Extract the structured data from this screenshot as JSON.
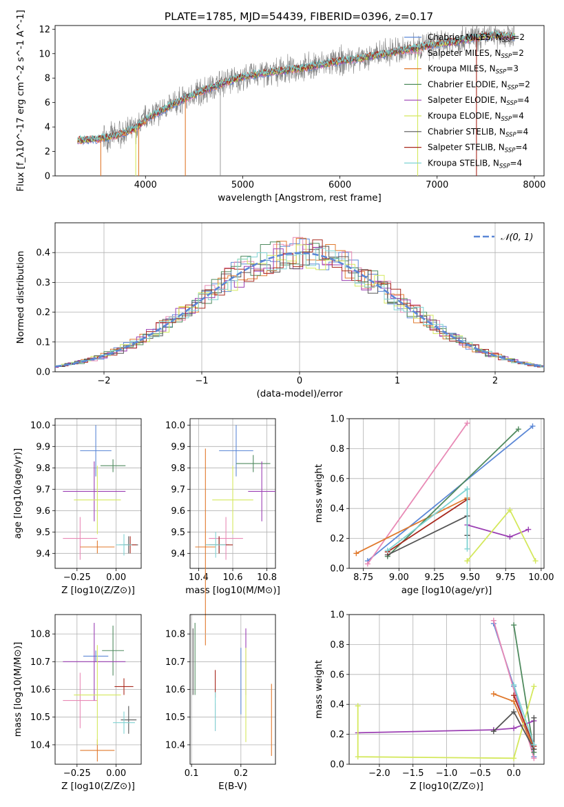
{
  "figure_title": "PLATE=1785, MJD=54439, FIBERID=0396, z=0.17",
  "colors": {
    "chabrier_miles": "#5b87d6",
    "salpeter_miles": "#e889b5",
    "kroupa_miles": "#e0782b",
    "chabrier_elodie": "#4f8a5e",
    "salpeter_elodie": "#9b3fb3",
    "kroupa_elodie": "#d4e85c",
    "chabrier_stelib": "#555555",
    "salpeter_stelib": "#a8281d",
    "kroupa_stelib": "#7fd3d3",
    "data": "#808080",
    "normal": "#5b87d6"
  },
  "chart_data": [
    {
      "id": "spectrum",
      "type": "line",
      "title": "PLATE=1785, MJD=54439, FIBERID=0396, z=0.17",
      "xlabel": "wavelength [Angstrom, rest frame]",
      "ylabel": "Flux [f_λ10^-17 erg cm^-2 s^-1 A^-1]",
      "xlim": [
        3070,
        8100
      ],
      "ylim": [
        0,
        12.3
      ],
      "xticks": [
        "4000",
        "5000",
        "6000",
        "7000",
        "8000"
      ],
      "yticks": [
        "0",
        "2",
        "4",
        "6",
        "8",
        "10",
        "12"
      ],
      "legend_position": "right",
      "legend": [
        {
          "key": "chabrier_miles",
          "label": "Chabrier MILES, N",
          "sub": "SSP",
          "val": "=2"
        },
        {
          "key": "salpeter_miles",
          "label": "Salpeter MILES, N",
          "sub": "SSP",
          "val": "=2"
        },
        {
          "key": "kroupa_miles",
          "label": "Kroupa MILES, N",
          "sub": "SSP",
          "val": "=3"
        },
        {
          "key": "chabrier_elodie",
          "label": "Chabrier ELODIE, N",
          "sub": "SSP",
          "val": "=2"
        },
        {
          "key": "salpeter_elodie",
          "label": "Salpeter ELODIE, N",
          "sub": "SSP",
          "val": "=4"
        },
        {
          "key": "kroupa_elodie",
          "label": "Kroupa ELODIE, N",
          "sub": "SSP",
          "val": "=4"
        },
        {
          "key": "chabrier_stelib",
          "label": "Chabrier STELIB, N",
          "sub": "SSP",
          "val": "=4"
        },
        {
          "key": "salpeter_stelib",
          "label": "Salpeter STELIB, N",
          "sub": "SSP",
          "val": "=4"
        },
        {
          "key": "kroupa_stelib",
          "label": "Kroupa STELIB, N",
          "sub": "SSP",
          "val": "=4"
        }
      ],
      "continuum": {
        "x": [
          3300,
          3500,
          3700,
          3900,
          4000,
          4200,
          4400,
          4600,
          4800,
          5000,
          5200,
          5400,
          5600,
          5800,
          6000,
          6200,
          6400,
          6600,
          6800,
          7000,
          7200,
          7400,
          7600,
          7800
        ],
        "y": [
          2.9,
          3.0,
          3.3,
          3.9,
          4.6,
          5.5,
          6.3,
          7.0,
          7.6,
          8.1,
          8.4,
          8.6,
          8.8,
          9.1,
          9.4,
          9.6,
          9.9,
          10.2,
          10.5,
          10.8,
          11.0,
          11.3,
          11.5,
          11.4
        ]
      }
    },
    {
      "id": "residuals",
      "type": "bar",
      "xlabel": "(data-model)/error",
      "ylabel": "Normed distribution",
      "xlim": [
        -2.5,
        2.5
      ],
      "ylim": [
        0,
        0.5
      ],
      "xticks": [
        "−2",
        "−1",
        "0",
        "1",
        "2"
      ],
      "yticks": [
        "0.0",
        "0.1",
        "0.2",
        "0.3",
        "0.4"
      ],
      "bin_width": 0.1,
      "legend_label": "𝒩(0, 1)",
      "legend_position": "top-right",
      "grid": true
    },
    {
      "id": "age_vs_Z",
      "type": "scatter",
      "xlabel": "Z [log10(Z/Z⊙)]",
      "ylabel": "age [log10(age/yr)]",
      "xlim": [
        -0.39,
        0.16
      ],
      "ylim": [
        9.33,
        10.03
      ],
      "xticks": [
        "−0.25",
        "0.00"
      ],
      "yticks": [
        "9.4",
        "9.5",
        "9.6",
        "9.7",
        "9.8",
        "9.9",
        "10.0"
      ],
      "grid": true,
      "points": [
        {
          "key": "chabrier_miles",
          "x": -0.13,
          "xerr": 0.1,
          "y": 9.88,
          "yerr": 0.12
        },
        {
          "key": "salpeter_miles",
          "x": -0.23,
          "xerr": 0.11,
          "y": 9.47,
          "yerr": 0.1
        },
        {
          "key": "kroupa_miles",
          "x": -0.12,
          "xerr": 0.11,
          "y": 9.43,
          "yerr": 0.03
        },
        {
          "key": "chabrier_elodie",
          "x": -0.02,
          "xerr": 0.08,
          "y": 9.81,
          "yerr": 0.03
        },
        {
          "key": "salpeter_elodie",
          "x": -0.14,
          "xerr": 0.2,
          "y": 9.69,
          "yerr": 0.14
        },
        {
          "key": "kroupa_elodie",
          "x": -0.12,
          "xerr": 0.15,
          "y": 9.65,
          "yerr": 0.16
        },
        {
          "key": "chabrier_stelib",
          "x": 0.08,
          "xerr": 0.06,
          "y": 9.44,
          "yerr": 0.04
        },
        {
          "key": "salpeter_stelib",
          "x": 0.09,
          "xerr": 0.04,
          "y": 9.44,
          "yerr": 0.04
        },
        {
          "key": "kroupa_stelib",
          "x": 0.05,
          "xerr": 0.05,
          "y": 9.44,
          "yerr": 0.05
        }
      ]
    },
    {
      "id": "age_vs_mass",
      "type": "scatter",
      "xlabel": "mass [log10(M/M⊙)]",
      "ylabel": "",
      "xlim": [
        10.35,
        10.85
      ],
      "ylim": [
        9.33,
        10.03
      ],
      "xticks": [
        "10.4",
        "10.6",
        "10.8"
      ],
      "yticks": [
        "9.4",
        "9.5",
        "9.6",
        "9.7",
        "9.8",
        "9.9",
        "10.0"
      ],
      "grid": true,
      "points": [
        {
          "key": "chabrier_miles",
          "x": 10.62,
          "xerr": 0.1,
          "y": 9.88,
          "yerr": 0.12
        },
        {
          "key": "salpeter_miles",
          "x": 10.56,
          "xerr": 0.1,
          "y": 9.47,
          "yerr": 0.1
        },
        {
          "key": "kroupa_miles",
          "x": 10.44,
          "xerr": 0.06,
          "y": 9.43,
          "yerr": 0.46
        },
        {
          "key": "chabrier_elodie",
          "x": 10.72,
          "xerr": 0.1,
          "y": 9.82,
          "yerr": 0.04
        },
        {
          "key": "salpeter_elodie",
          "x": 10.77,
          "xerr": 0.08,
          "y": 9.69,
          "yerr": 0.14
        },
        {
          "key": "kroupa_elodie",
          "x": 10.6,
          "xerr": 0.12,
          "y": 9.65,
          "yerr": 0.16
        },
        {
          "key": "chabrier_stelib",
          "x": 10.52,
          "xerr": 0.06,
          "y": 9.44,
          "yerr": 0.04
        },
        {
          "key": "salpeter_stelib",
          "x": 10.52,
          "xerr": 0.08,
          "y": 9.44,
          "yerr": 0.04
        },
        {
          "key": "kroupa_stelib",
          "x": 10.5,
          "xerr": 0.06,
          "y": 9.44,
          "yerr": 0.06
        }
      ]
    },
    {
      "id": "weight_vs_age",
      "type": "line",
      "xlabel": "age [log10(age/yr)]",
      "ylabel": "mass weight",
      "xlim": [
        8.65,
        10.02
      ],
      "ylim": [
        0,
        1.0
      ],
      "xticks": [
        "8.75",
        "9.00",
        "9.25",
        "9.50",
        "9.75",
        "10.00"
      ],
      "yticks": [
        "0.0",
        "0.2",
        "0.4",
        "0.6",
        "0.8",
        "1.0"
      ],
      "grid": true,
      "series": [
        {
          "key": "chabrier_miles",
          "x": [
            8.78,
            9.94
          ],
          "y": [
            0.05,
            0.95
          ]
        },
        {
          "key": "salpeter_miles",
          "x": [
            8.78,
            9.48
          ],
          "y": [
            0.03,
            0.97
          ]
        },
        {
          "key": "kroupa_miles",
          "x": [
            8.7,
            9.48
          ],
          "y": [
            0.1,
            0.47
          ]
        },
        {
          "key": "chabrier_elodie",
          "x": [
            8.92,
            9.84
          ],
          "y": [
            0.08,
            0.93
          ]
        },
        {
          "key": "salpeter_elodie",
          "x": [
            9.48,
            9.78,
            9.91
          ],
          "y": [
            0.29,
            0.21,
            0.26
          ]
        },
        {
          "key": "kroupa_elodie",
          "x": [
            9.48,
            9.48,
            9.78,
            9.96
          ],
          "y": [
            0.05,
            0.05,
            0.39,
            0.05
          ]
        },
        {
          "key": "chabrier_stelib",
          "x": [
            8.92,
            9.48,
            9.48
          ],
          "y": [
            0.09,
            0.35,
            0.22
          ]
        },
        {
          "key": "salpeter_stelib",
          "x": [
            8.92,
            9.48
          ],
          "y": [
            0.11,
            0.46
          ]
        },
        {
          "key": "kroupa_stelib",
          "x": [
            8.92,
            9.48,
            9.48
          ],
          "y": [
            0.12,
            0.53,
            0.13
          ]
        }
      ]
    },
    {
      "id": "mass_vs_Z",
      "type": "scatter",
      "xlabel": "Z [log10(Z/Z⊙)]",
      "ylabel": "mass [log10(M/M⊙)]",
      "xlim": [
        -0.39,
        0.16
      ],
      "ylim": [
        10.33,
        10.87
      ],
      "xticks": [
        "−0.25",
        "0.00"
      ],
      "yticks": [
        "10.4",
        "10.5",
        "10.6",
        "10.7",
        "10.8"
      ],
      "grid": true,
      "points": [
        {
          "key": "chabrier_miles",
          "x": -0.13,
          "xerr": 0.08,
          "y": 10.72,
          "yerr": 0.02
        },
        {
          "key": "salpeter_miles",
          "x": -0.23,
          "xerr": 0.11,
          "y": 10.56,
          "yerr": 0.1
        },
        {
          "key": "kroupa_miles",
          "x": -0.12,
          "xerr": 0.11,
          "y": 10.38,
          "yerr": 0.04
        },
        {
          "key": "chabrier_elodie",
          "x": -0.02,
          "xerr": 0.07,
          "y": 10.74,
          "yerr": 0.09
        },
        {
          "key": "salpeter_elodie",
          "x": -0.14,
          "xerr": 0.2,
          "y": 10.7,
          "yerr": 0.14
        },
        {
          "key": "kroupa_elodie",
          "x": -0.12,
          "xerr": 0.15,
          "y": 10.58,
          "yerr": 0.18
        },
        {
          "key": "chabrier_stelib",
          "x": 0.08,
          "xerr": 0.05,
          "y": 10.49,
          "yerr": 0.05
        },
        {
          "key": "salpeter_stelib",
          "x": 0.05,
          "xerr": 0.06,
          "y": 10.61,
          "yerr": 0.03
        },
        {
          "key": "kroupa_stelib",
          "x": 0.05,
          "xerr": 0.07,
          "y": 10.48,
          "yerr": 0.04
        }
      ]
    },
    {
      "id": "mass_vs_ebv",
      "type": "scatter",
      "xlabel": "E(B-V)",
      "ylabel": "",
      "xlim": [
        0.097,
        0.27
      ],
      "ylim": [
        10.33,
        10.87
      ],
      "xticks": [
        "0.1",
        "0.2"
      ],
      "yticks": [
        "10.4",
        "10.5",
        "10.6",
        "10.7",
        "10.8"
      ],
      "grid": true,
      "points": [
        {
          "key": "chabrier_miles",
          "x": 0.2,
          "y": 10.63,
          "yerr": 0.12
        },
        {
          "key": "salpeter_miles",
          "x": 0.148,
          "y": 10.5,
          "yerr": 0.05
        },
        {
          "key": "kroupa_miles",
          "x": 0.262,
          "y": 10.49,
          "yerr": 0.13
        },
        {
          "key": "chabrier_elodie",
          "x": 0.107,
          "y": 10.71,
          "yerr": 0.13
        },
        {
          "key": "salpeter_elodie",
          "x": 0.21,
          "y": 10.7,
          "yerr": 0.12
        },
        {
          "key": "kroupa_elodie",
          "x": 0.21,
          "y": 10.58,
          "yerr": 0.17
        },
        {
          "key": "chabrier_stelib",
          "x": 0.103,
          "y": 10.7,
          "yerr": 0.12
        },
        {
          "key": "salpeter_stelib",
          "x": 0.148,
          "y": 10.62,
          "yerr": 0.05
        },
        {
          "key": "kroupa_stelib",
          "x": 0.148,
          "y": 10.52,
          "yerr": 0.07
        }
      ]
    },
    {
      "id": "weight_vs_Z",
      "type": "line",
      "xlabel": "Z [log10(Z/Z⊙)]",
      "ylabel": "mass weight",
      "xlim": [
        -2.45,
        0.45
      ],
      "ylim": [
        0,
        1.0
      ],
      "xticks": [
        "−2.0",
        "−1.5",
        "−1.0",
        "−0.5",
        "0.0"
      ],
      "yticks": [
        "0.0",
        "0.2",
        "0.4",
        "0.6",
        "0.8",
        "1.0"
      ],
      "grid": true,
      "series": [
        {
          "key": "chabrier_miles",
          "x": [
            -0.3,
            0.0,
            0.3
          ],
          "y": [
            0.94,
            0.52,
            0.05
          ]
        },
        {
          "key": "salpeter_miles",
          "x": [
            -0.3,
            0.3
          ],
          "y": [
            0.96,
            0.04
          ]
        },
        {
          "key": "kroupa_miles",
          "x": [
            -0.3,
            0.0,
            0.3
          ],
          "y": [
            0.47,
            0.42,
            0.1
          ]
        },
        {
          "key": "chabrier_elodie",
          "x": [
            0.0,
            0.3
          ],
          "y": [
            0.93,
            0.08
          ]
        },
        {
          "key": "salpeter_elodie",
          "x": [
            -2.32,
            -0.3,
            0.0,
            0.3
          ],
          "y": [
            0.21,
            0.23,
            0.24,
            0.29
          ]
        },
        {
          "key": "kroupa_elodie",
          "x": [
            -2.32,
            -2.32,
            0.0,
            0.3
          ],
          "y": [
            0.39,
            0.05,
            0.04,
            0.52
          ]
        },
        {
          "key": "chabrier_stelib",
          "x": [
            -0.3,
            0.0,
            0.3,
            0.3
          ],
          "y": [
            0.22,
            0.35,
            0.1,
            0.31
          ]
        },
        {
          "key": "salpeter_stelib",
          "x": [
            0.0,
            0.3
          ],
          "y": [
            0.46,
            0.12
          ]
        },
        {
          "key": "kroupa_stelib",
          "x": [
            0.0,
            0.3
          ],
          "y": [
            0.53,
            0.13
          ]
        }
      ]
    }
  ]
}
